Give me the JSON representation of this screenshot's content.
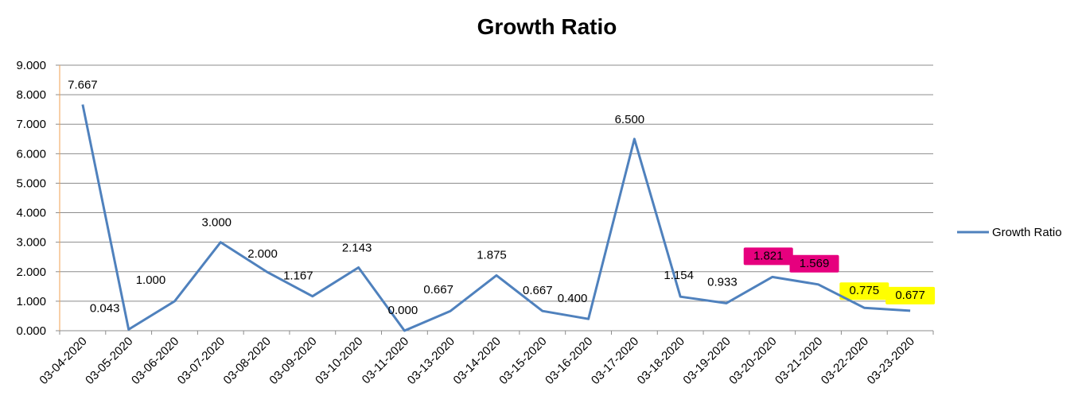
{
  "chart_data": {
    "type": "line",
    "title": "Growth Ratio",
    "xlabel": "",
    "ylabel": "",
    "ylim": [
      0,
      9
    ],
    "yticks": [
      "0.000",
      "1.000",
      "2.000",
      "3.000",
      "4.000",
      "5.000",
      "6.000",
      "7.000",
      "8.000",
      "9.000"
    ],
    "categories": [
      "03-04-2020",
      "03-05-2020",
      "03-06-2020",
      "03-07-2020",
      "03-08-2020",
      "03-09-2020",
      "03-10-2020",
      "03-11-2020",
      "03-13-2020",
      "03-14-2020",
      "03-15-2020",
      "03-16-2020",
      "03-17-2020",
      "03-18-2020",
      "03-19-2020",
      "03-20-2020",
      "03-21-2020",
      "03-22-2020",
      "03-23-2020"
    ],
    "series": [
      {
        "name": "Growth Ratio",
        "color": "#4f81bd",
        "values": [
          7.667,
          0.043,
          1.0,
          3.0,
          2.0,
          1.167,
          2.143,
          0.0,
          0.667,
          1.875,
          0.667,
          0.4,
          6.5,
          1.154,
          0.933,
          1.821,
          1.569,
          0.775,
          0.677
        ],
        "labels": [
          "7.667",
          "0.043",
          "1.000",
          "3.000",
          "2.000",
          "1.167",
          "2.143",
          "0.000",
          "0.667",
          "1.875",
          "0.667",
          "0.400",
          "6.500",
          "1.154",
          "0.933",
          "1.821",
          "1.569",
          "0.775",
          "0.677"
        ]
      }
    ],
    "highlights": [
      {
        "index": 15,
        "color": "#e6007e"
      },
      {
        "index": 16,
        "color": "#e6007e"
      },
      {
        "index": 17,
        "color": "#ffff00"
      },
      {
        "index": 18,
        "color": "#ffff00"
      }
    ],
    "grid": true,
    "legend": "right"
  }
}
